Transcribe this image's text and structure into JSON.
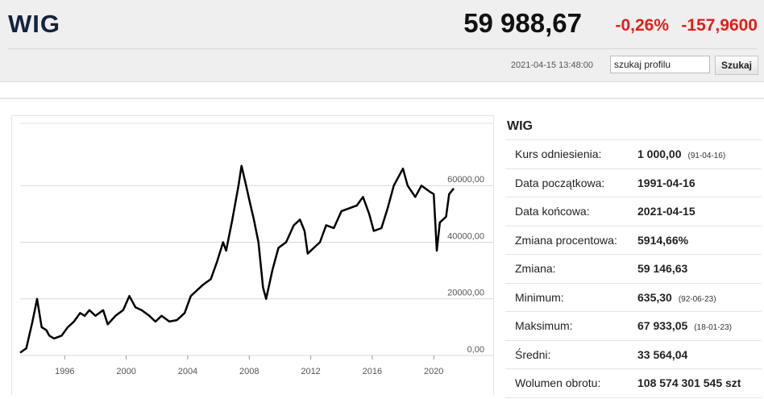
{
  "header": {
    "title": "WIG",
    "price": "59 988,67",
    "change_pct": "-0,26%",
    "change_abs": "-157,9600",
    "timestamp": "2021-04-15 13:48:00",
    "search_placeholder": "szukaj profilu",
    "search_button": "Szukaj"
  },
  "chart_data": {
    "type": "line",
    "color": "#000000",
    "x": [
      1993.1,
      1993.5,
      1993.9,
      1994.2,
      1994.5,
      1994.8,
      1995.0,
      1995.3,
      1995.8,
      1996.2,
      1996.6,
      1997.0,
      1997.3,
      1997.6,
      1998.0,
      1998.5,
      1998.8,
      1999.3,
      1999.8,
      2000.2,
      2000.6,
      2001.0,
      2001.5,
      2001.9,
      2002.3,
      2002.8,
      2003.3,
      2003.8,
      2004.2,
      2004.6,
      2005.0,
      2005.5,
      2005.9,
      2006.3,
      2006.5,
      2006.9,
      2007.3,
      2007.5,
      2007.8,
      2008.0,
      2008.3,
      2008.6,
      2008.9,
      2009.1,
      2009.5,
      2009.9,
      2010.4,
      2010.9,
      2011.3,
      2011.6,
      2011.8,
      2012.2,
      2012.6,
      2013.0,
      2013.5,
      2014.0,
      2014.5,
      2015.0,
      2015.4,
      2015.8,
      2016.1,
      2016.6,
      2017.0,
      2017.4,
      2018.0,
      2018.3,
      2018.8,
      2019.2,
      2019.7,
      2020.0,
      2020.2,
      2020.4,
      2020.8,
      2021.0,
      2021.3
    ],
    "series": [
      {
        "values": [
          1000,
          2500,
          12000,
          20000,
          10000,
          9000,
          7000,
          6000,
          7000,
          10000,
          12000,
          15000,
          14000,
          16000,
          14000,
          16000,
          11000,
          14000,
          16000,
          21000,
          17000,
          16000,
          14000,
          12000,
          14000,
          12000,
          12500,
          15000,
          21000,
          23000,
          25000,
          27000,
          33000,
          40000,
          37000,
          48000,
          60000,
          67000,
          60000,
          55000,
          48000,
          40000,
          24000,
          20000,
          30000,
          38000,
          40000,
          46000,
          48000,
          44000,
          36000,
          38000,
          40000,
          46000,
          45000,
          51000,
          52000,
          53000,
          56000,
          50000,
          44000,
          45000,
          52000,
          60000,
          66000,
          60000,
          56000,
          60000,
          58000,
          57000,
          37000,
          47000,
          49000,
          57000,
          59000
        ]
      }
    ],
    "xlim": [
      1993.1,
      2021.3
    ],
    "xticks": [
      1996,
      2000,
      2004,
      2008,
      2012,
      2016,
      2020
    ],
    "ylim": [
      0,
      82000
    ],
    "yticks": [
      {
        "value": 0,
        "label": "0,00"
      },
      {
        "value": 20000,
        "label": "20000,00"
      },
      {
        "value": 40000,
        "label": "40000,00"
      },
      {
        "value": 60000,
        "label": "60000,00"
      }
    ],
    "grid": true
  },
  "panel": {
    "title": "WIG",
    "rows": [
      {
        "label": "Kurs odniesienia:",
        "value": "1 000,00",
        "note": "(91-04-16)"
      },
      {
        "label": "Data początkowa:",
        "value": "1991-04-16"
      },
      {
        "label": "Data końcowa:",
        "value": "2021-04-15"
      },
      {
        "label": "Zmiana procentowa:",
        "value": "5914,66%"
      },
      {
        "label": "Zmiana:",
        "value": "59 146,63"
      },
      {
        "label": "Minimum:",
        "value": "635,30",
        "note": "(92-06-23)"
      },
      {
        "label": "Maksimum:",
        "value": "67 933,05",
        "note": "(18-01-23)"
      },
      {
        "label": "Średni:",
        "value": "33 564,04"
      },
      {
        "label": "Wolumen obrotu:",
        "value": "108 574 301 545 szt"
      }
    ]
  }
}
